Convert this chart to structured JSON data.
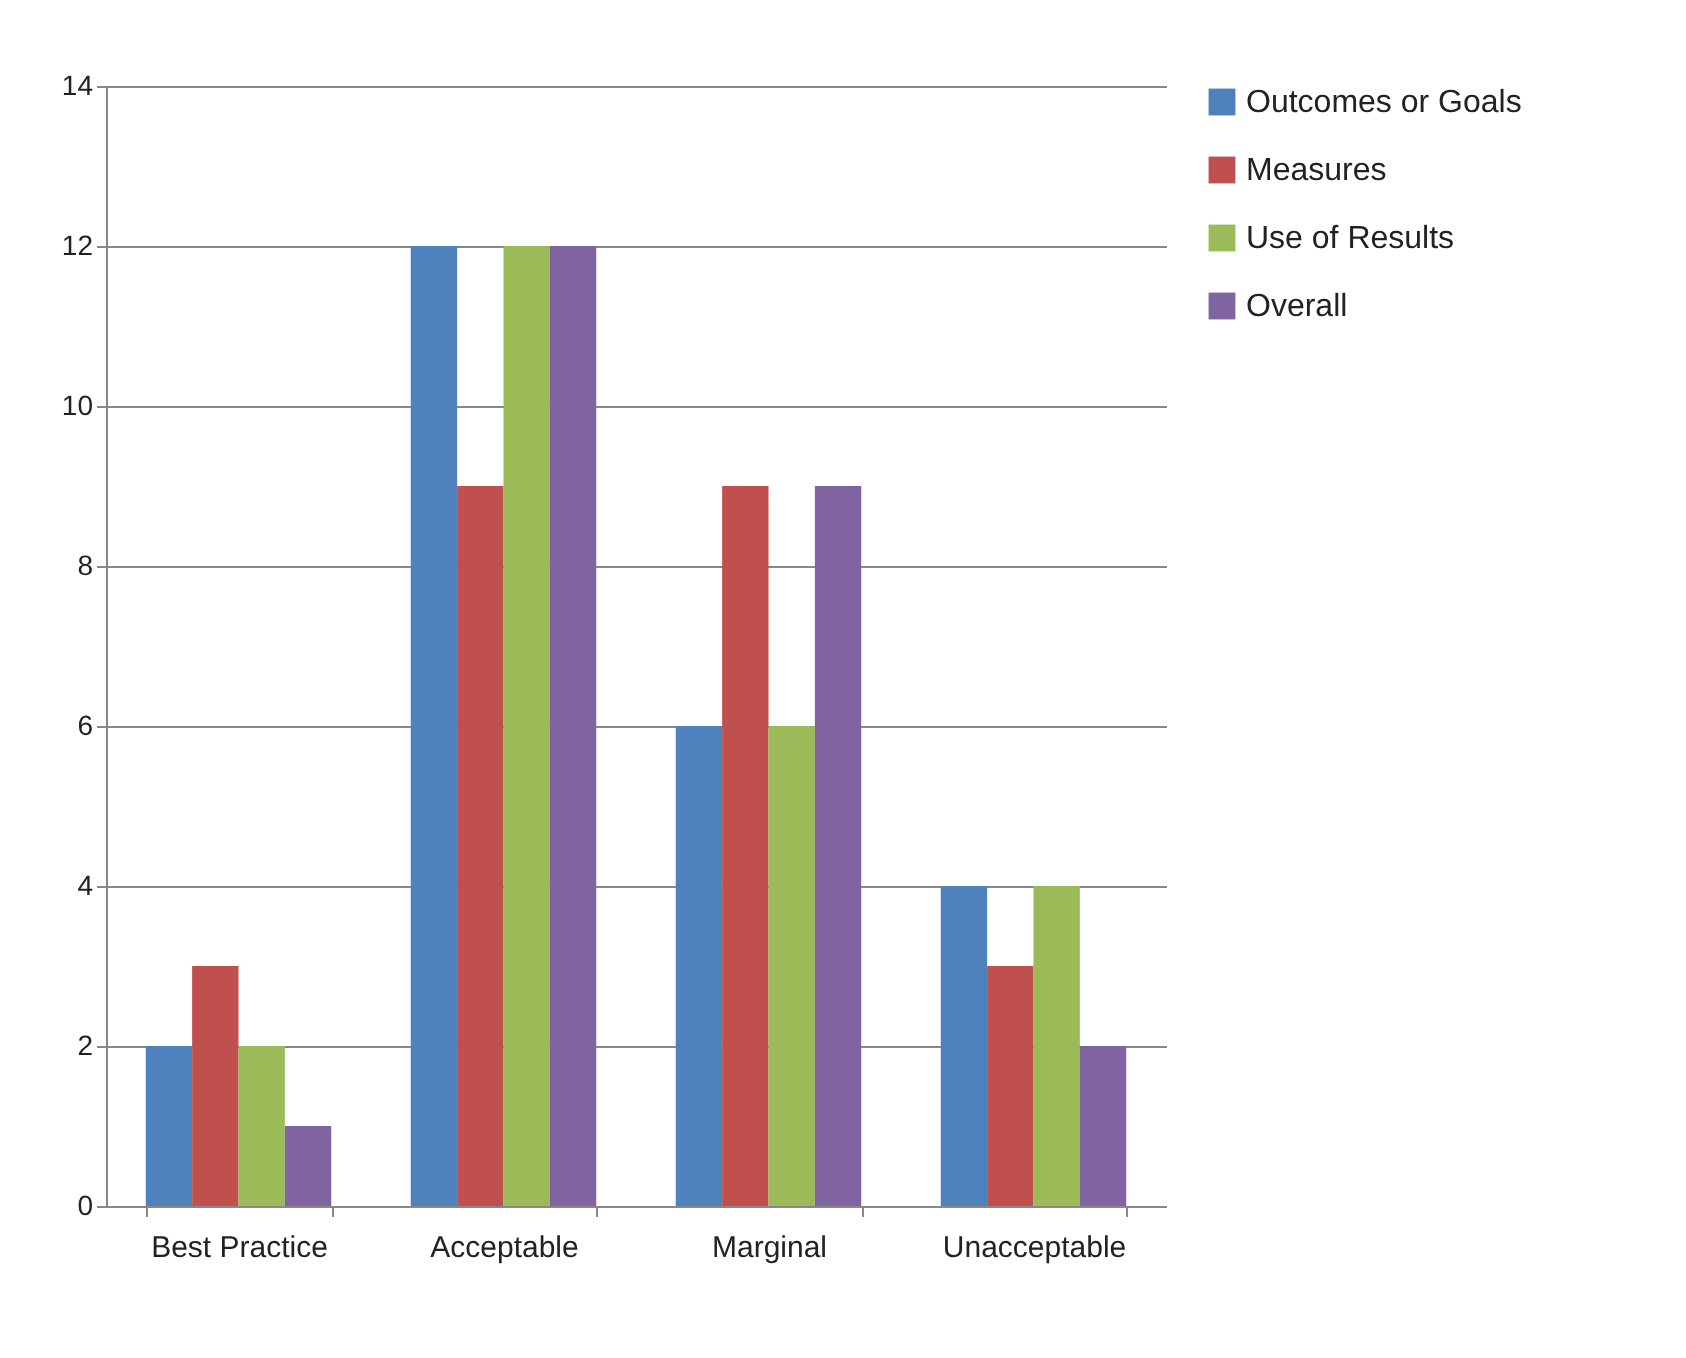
{
  "chart_data": {
    "type": "bar",
    "categories": [
      "Best Practice",
      "Acceptable",
      "Marginal",
      "Unacceptable"
    ],
    "series": [
      {
        "name": "Outcomes or Goals",
        "color": "#4f81bd",
        "values": [
          2,
          12,
          6,
          4
        ]
      },
      {
        "name": "Measures",
        "color": "#c0504d",
        "values": [
          3,
          9,
          9,
          3
        ]
      },
      {
        "name": "Use of Results",
        "color": "#9bbb59",
        "values": [
          2,
          12,
          6,
          4
        ]
      },
      {
        "name": "Overall",
        "color": "#8064a2",
        "values": [
          1,
          12,
          9,
          2
        ]
      }
    ],
    "ylim": [
      0,
      14
    ],
    "yticks": [
      0,
      2,
      4,
      6,
      8,
      10,
      12,
      14
    ],
    "grid": "y",
    "legend": "right"
  }
}
